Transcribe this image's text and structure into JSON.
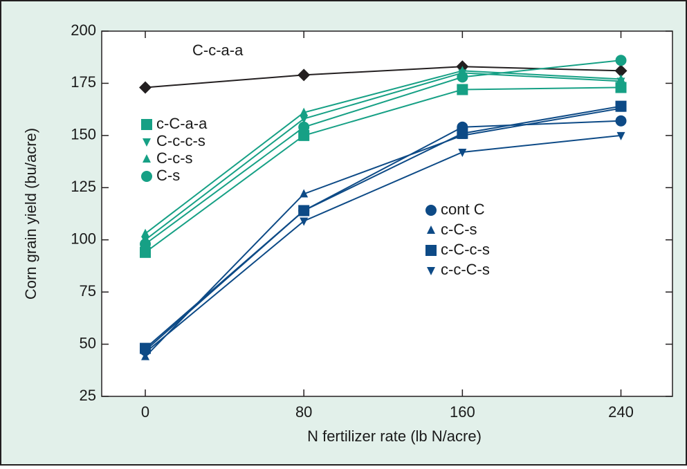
{
  "chart_data": {
    "type": "line",
    "x_label": "N fertilizer rate (lb N/acre)",
    "y_label": "Corn grain yield (bu/acre)",
    "x": [
      0,
      80,
      160,
      240
    ],
    "xlim": [
      -22,
      266
    ],
    "xticks": [
      0,
      80,
      160,
      240
    ],
    "ylim": [
      25,
      200
    ],
    "yticks": [
      25,
      50,
      75,
      100,
      125,
      150,
      175,
      200
    ],
    "series": [
      {
        "name": "C-c-a-a",
        "color": "#231f20",
        "marker": "diamond",
        "values": [
          173,
          179,
          183,
          181
        ]
      },
      {
        "name": "c-C-a-a",
        "color": "#16a085",
        "marker": "square",
        "values": [
          94,
          150,
          172,
          173
        ]
      },
      {
        "name": "C-c-c-s",
        "color": "#16a085",
        "marker": "triangle-down",
        "values": [
          100,
          158,
          180,
          176
        ]
      },
      {
        "name": "C-c-s",
        "color": "#16a085",
        "marker": "triangle-up",
        "values": [
          103,
          161,
          181,
          177
        ]
      },
      {
        "name": "C-s",
        "color": "#16a085",
        "marker": "circle",
        "values": [
          98,
          154,
          178,
          186
        ]
      },
      {
        "name": "cont C",
        "color": "#0d4a86",
        "marker": "circle",
        "values": [
          47,
          114,
          154,
          157
        ]
      },
      {
        "name": "c-C-s",
        "color": "#0d4a86",
        "marker": "triangle-up",
        "values": [
          44,
          122,
          150,
          163
        ]
      },
      {
        "name": "c-C-c-s",
        "color": "#0d4a86",
        "marker": "square",
        "values": [
          48,
          114,
          151,
          164
        ]
      },
      {
        "name": "c-c-C-s",
        "color": "#0d4a86",
        "marker": "triangle-down",
        "values": [
          46,
          109,
          142,
          150
        ]
      }
    ]
  }
}
